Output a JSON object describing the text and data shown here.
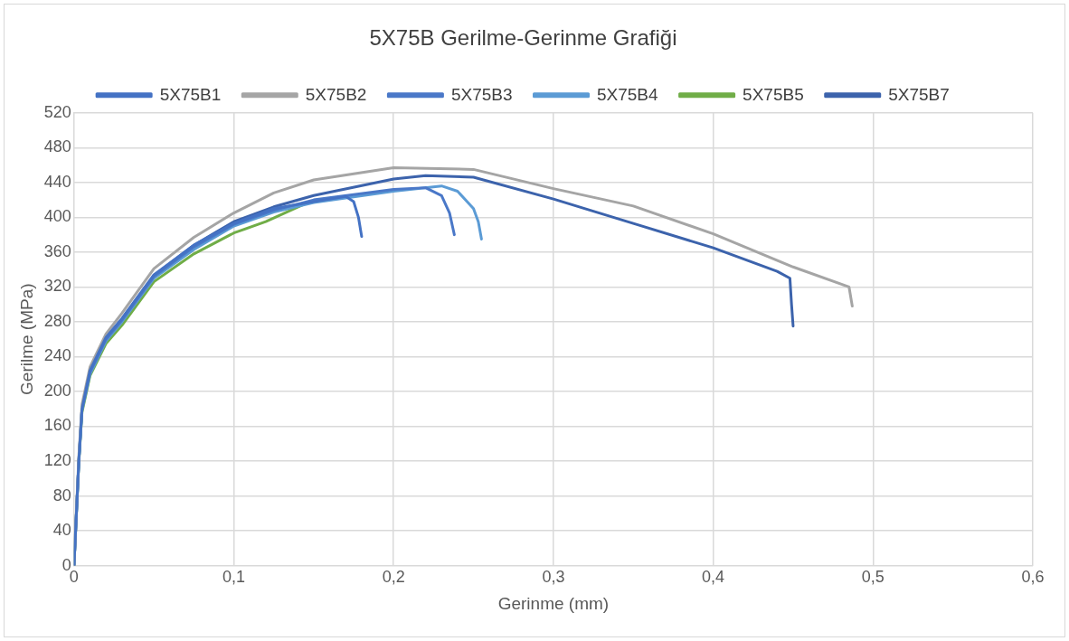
{
  "chart_data": {
    "type": "line",
    "title": "5X75B Gerilme-Gerinme Grafiği",
    "xlabel": "Gerinme (mm)",
    "ylabel": "Gerilme (MPa)",
    "xlim": [
      0,
      0.6
    ],
    "xticks": [
      0,
      {
        "value": 0.1,
        "label": "0,1"
      },
      {
        "value": 0.2,
        "label": "0,2"
      },
      {
        "value": 0.3,
        "label": "0,3"
      },
      {
        "value": 0.4,
        "label": "0,4"
      },
      {
        "value": 0.5,
        "label": "0,5"
      },
      {
        "value": 0.6,
        "label": "0,6"
      }
    ],
    "ylim": [
      0,
      520
    ],
    "yticks": [
      0,
      40,
      80,
      120,
      160,
      200,
      240,
      280,
      320,
      360,
      400,
      440,
      480,
      520
    ],
    "grid": true,
    "legend": "top",
    "marker": "none",
    "line_style": "solid",
    "series": [
      {
        "name": "5X75B1",
        "color": "#4472c4",
        "x": [
          0,
          0.003,
          0.005,
          0.01,
          0.02,
          0.03,
          0.05,
          0.075,
          0.1,
          0.125,
          0.15,
          0.17,
          0.175,
          0.178,
          0.18
        ],
        "values": [
          0,
          120,
          180,
          224,
          262,
          284,
          334,
          368,
          393,
          410,
          418,
          424,
          418,
          400,
          378
        ]
      },
      {
        "name": "5X75B2",
        "color": "#a5a5a5",
        "x": [
          0,
          0.003,
          0.005,
          0.01,
          0.02,
          0.03,
          0.05,
          0.075,
          0.1,
          0.125,
          0.15,
          0.2,
          0.25,
          0.3,
          0.35,
          0.4,
          0.45,
          0.485,
          0.487
        ],
        "values": [
          0,
          125,
          185,
          228,
          266,
          290,
          341,
          377,
          405,
          428,
          443,
          457,
          455,
          433,
          413,
          381,
          343,
          320,
          298
        ]
      },
      {
        "name": "5X75B3",
        "color": "#4a78c8",
        "x": [
          0,
          0.003,
          0.005,
          0.01,
          0.02,
          0.03,
          0.05,
          0.075,
          0.1,
          0.125,
          0.15,
          0.2,
          0.22,
          0.23,
          0.235,
          0.238
        ],
        "values": [
          0,
          120,
          180,
          222,
          260,
          282,
          332,
          366,
          392,
          408,
          420,
          432,
          434,
          425,
          405,
          380
        ]
      },
      {
        "name": "5X75B4",
        "color": "#5b9bd5",
        "x": [
          0,
          0.003,
          0.005,
          0.01,
          0.02,
          0.03,
          0.05,
          0.075,
          0.1,
          0.125,
          0.15,
          0.2,
          0.23,
          0.24,
          0.25,
          0.253,
          0.255
        ],
        "values": [
          0,
          118,
          178,
          220,
          258,
          280,
          330,
          363,
          390,
          406,
          417,
          430,
          436,
          430,
          410,
          395,
          375
        ]
      },
      {
        "name": "5X75B5",
        "color": "#70ad47",
        "x": [
          0,
          0.003,
          0.005,
          0.01,
          0.02,
          0.03,
          0.05,
          0.075,
          0.1,
          0.12,
          0.144
        ],
        "values": [
          0,
          118,
          176,
          218,
          255,
          276,
          326,
          358,
          382,
          395,
          415
        ]
      },
      {
        "name": "5X75B7",
        "color": "#3c63ac",
        "x": [
          0,
          0.003,
          0.005,
          0.01,
          0.02,
          0.03,
          0.05,
          0.075,
          0.1,
          0.125,
          0.15,
          0.2,
          0.22,
          0.25,
          0.3,
          0.35,
          0.4,
          0.44,
          0.448,
          0.449,
          0.45
        ],
        "values": [
          0,
          120,
          180,
          223,
          261,
          283,
          333,
          368,
          395,
          412,
          425,
          444,
          448,
          446,
          421,
          393,
          365,
          338,
          330,
          300,
          275
        ]
      }
    ]
  }
}
